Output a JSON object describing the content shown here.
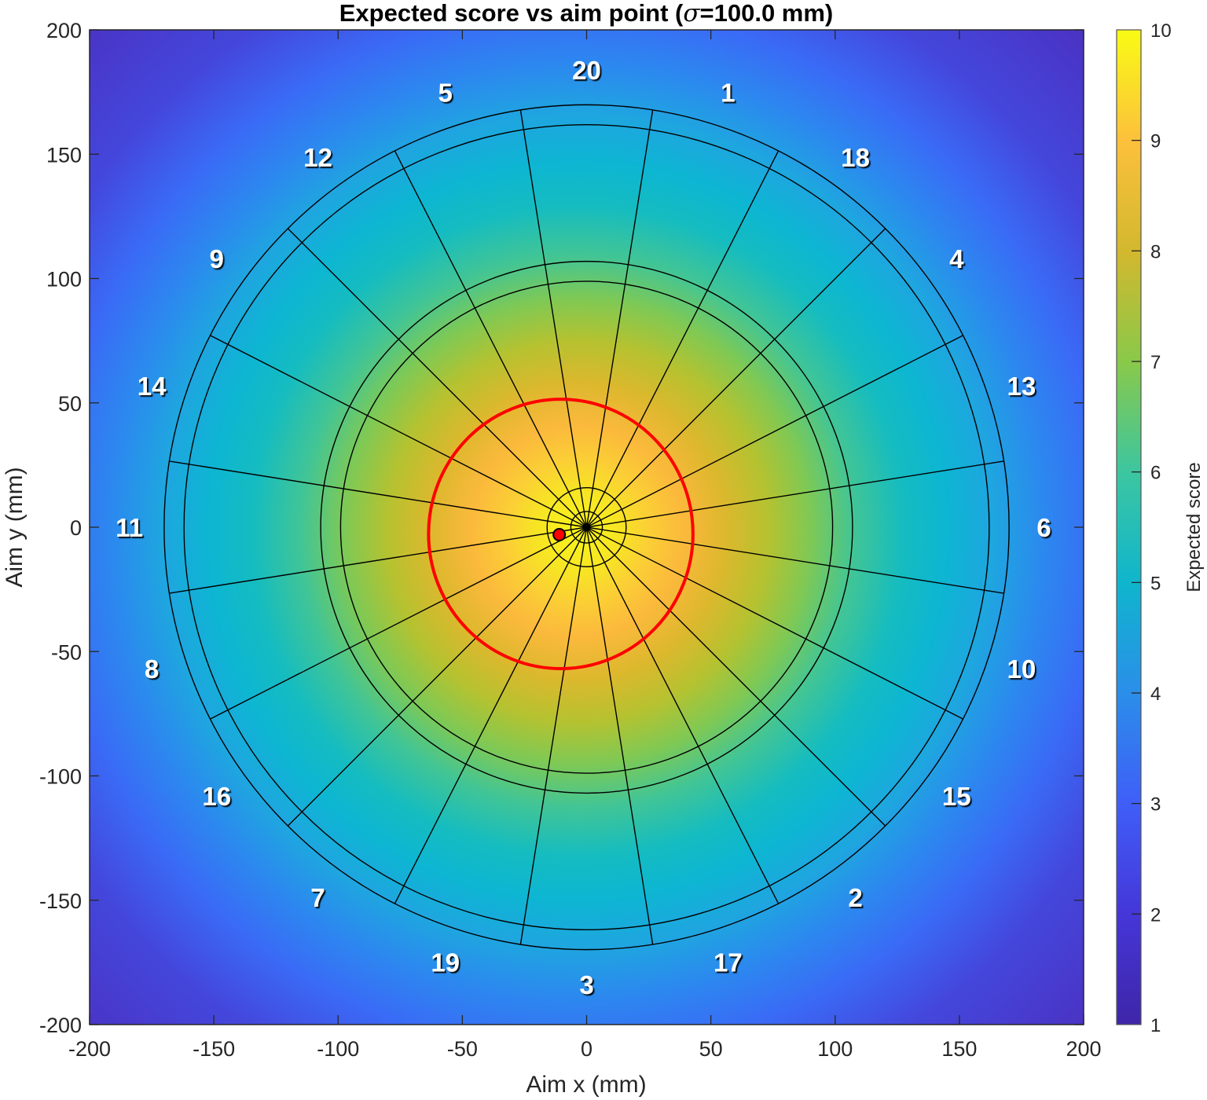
{
  "chart_data": {
    "type": "heatmap",
    "title": "Expected score vs aim point (σ=100.0 mm)",
    "title_prefix": "Expected score vs aim point (",
    "title_sigma": "σ",
    "title_suffix": "=100.0 mm)",
    "xlabel": "Aim x (mm)",
    "ylabel": "Aim y (mm)",
    "xlim": [
      -200,
      200
    ],
    "ylim": [
      -200,
      200
    ],
    "xticks": [
      -200,
      -150,
      -100,
      -50,
      0,
      50,
      100,
      150,
      200
    ],
    "yticks": [
      -200,
      -150,
      -100,
      -50,
      0,
      50,
      100,
      150,
      200
    ],
    "grid": false,
    "colorbar": {
      "label": "Expected score",
      "range": [
        1,
        10
      ],
      "ticks": [
        1,
        2,
        3,
        4,
        5,
        6,
        7,
        8,
        9,
        10
      ],
      "colormap": "parula",
      "stops": [
        {
          "value": 1,
          "color": "#3e26a8"
        },
        {
          "value": 2,
          "color": "#4536d8"
        },
        {
          "value": 3,
          "color": "#3f5ef8"
        },
        {
          "value": 4,
          "color": "#2b8ee9"
        },
        {
          "value": 5,
          "color": "#0fb5cd"
        },
        {
          "value": 6,
          "color": "#3cc6a0"
        },
        {
          "value": 7,
          "color": "#89c94a"
        },
        {
          "value": 8,
          "color": "#d2b82e"
        },
        {
          "value": 9,
          "color": "#fcc03c"
        },
        {
          "value": 10,
          "color": "#f9fb15"
        }
      ]
    },
    "heatmap_summary": {
      "max_expected_score_approx": 9.9,
      "peak_location_mm": [
        -11,
        -3
      ],
      "corner_value_approx": 1.8,
      "value_at_board_edge_approx": 5.0
    },
    "dartboard": {
      "center_mm": [
        0,
        0
      ],
      "ring_radii_mm": [
        6.35,
        15.9,
        99,
        107,
        162,
        170
      ],
      "sector_order_clockwise_from_top": [
        20,
        1,
        18,
        4,
        13,
        6,
        10,
        15,
        2,
        17,
        3,
        19,
        7,
        16,
        8,
        11,
        14,
        9,
        12,
        5
      ],
      "label_radius_mm": 184,
      "line_color": "#000000"
    },
    "optimal_aim": {
      "x_mm": -11,
      "y_mm": -3,
      "marker_color": "#ff0000"
    },
    "contour": {
      "description": "red contour around optimal region",
      "center_mm": [
        -10.4,
        -2.7
      ],
      "rx_mm": 53.2,
      "ry_mm": 54.2,
      "color": "#ff0000"
    }
  }
}
